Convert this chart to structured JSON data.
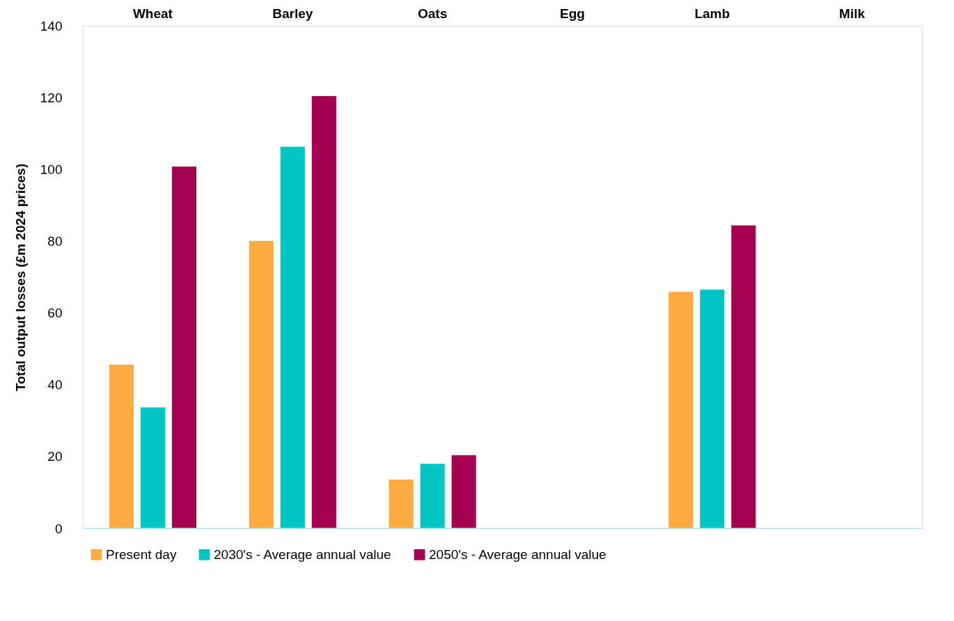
{
  "chart_data": {
    "type": "bar",
    "ylabel": "Total output losses (£m 2024 prices)",
    "categories": [
      "Wheat",
      "Barley",
      "Oats",
      "Egg",
      "Lamb",
      "Milk"
    ],
    "series": [
      {
        "name": "Present day",
        "color": "#ffab40",
        "values": [
          45.6,
          80.1,
          13.6,
          0,
          65.9,
          0
        ]
      },
      {
        "name": "2030's - Average annual value",
        "color": "#00c5c5",
        "values": [
          33.7,
          106.3,
          18.0,
          0,
          66.5,
          0
        ]
      },
      {
        "name": "2050's - Average annual value",
        "color": "#a50050",
        "values": [
          100.8,
          120.4,
          20.4,
          0,
          84.4,
          0
        ]
      }
    ],
    "ylim": [
      0,
      140
    ],
    "yticks": [
      0,
      20,
      40,
      60,
      80,
      100,
      120,
      140
    ],
    "grid": false,
    "legend": "bottom"
  }
}
